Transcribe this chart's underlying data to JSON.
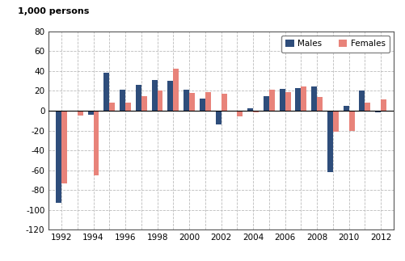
{
  "years": [
    1992,
    1993,
    1994,
    1995,
    1996,
    1997,
    1998,
    1999,
    2000,
    2001,
    2002,
    2003,
    2004,
    2005,
    2006,
    2007,
    2008,
    2009,
    2010,
    2011,
    2012
  ],
  "males": [
    -93,
    -1,
    -4,
    38,
    21,
    26,
    31,
    30,
    21,
    12,
    -14,
    -1,
    2,
    15,
    22,
    23,
    24,
    -62,
    5,
    20,
    -2
  ],
  "females": [
    -73,
    -5,
    -65,
    8,
    8,
    15,
    20,
    42,
    18,
    19,
    17,
    -6,
    -2,
    21,
    19,
    24,
    14,
    -21,
    -20,
    8,
    11
  ],
  "male_color": "#2E4D7B",
  "female_color": "#E8837A",
  "top_label": "1,000 persons",
  "ylim": [
    -120,
    80
  ],
  "yticks": [
    -120,
    -100,
    -80,
    -60,
    -40,
    -20,
    0,
    20,
    40,
    60,
    80
  ],
  "grid_color": "#bbbbbb",
  "bar_width": 0.35
}
